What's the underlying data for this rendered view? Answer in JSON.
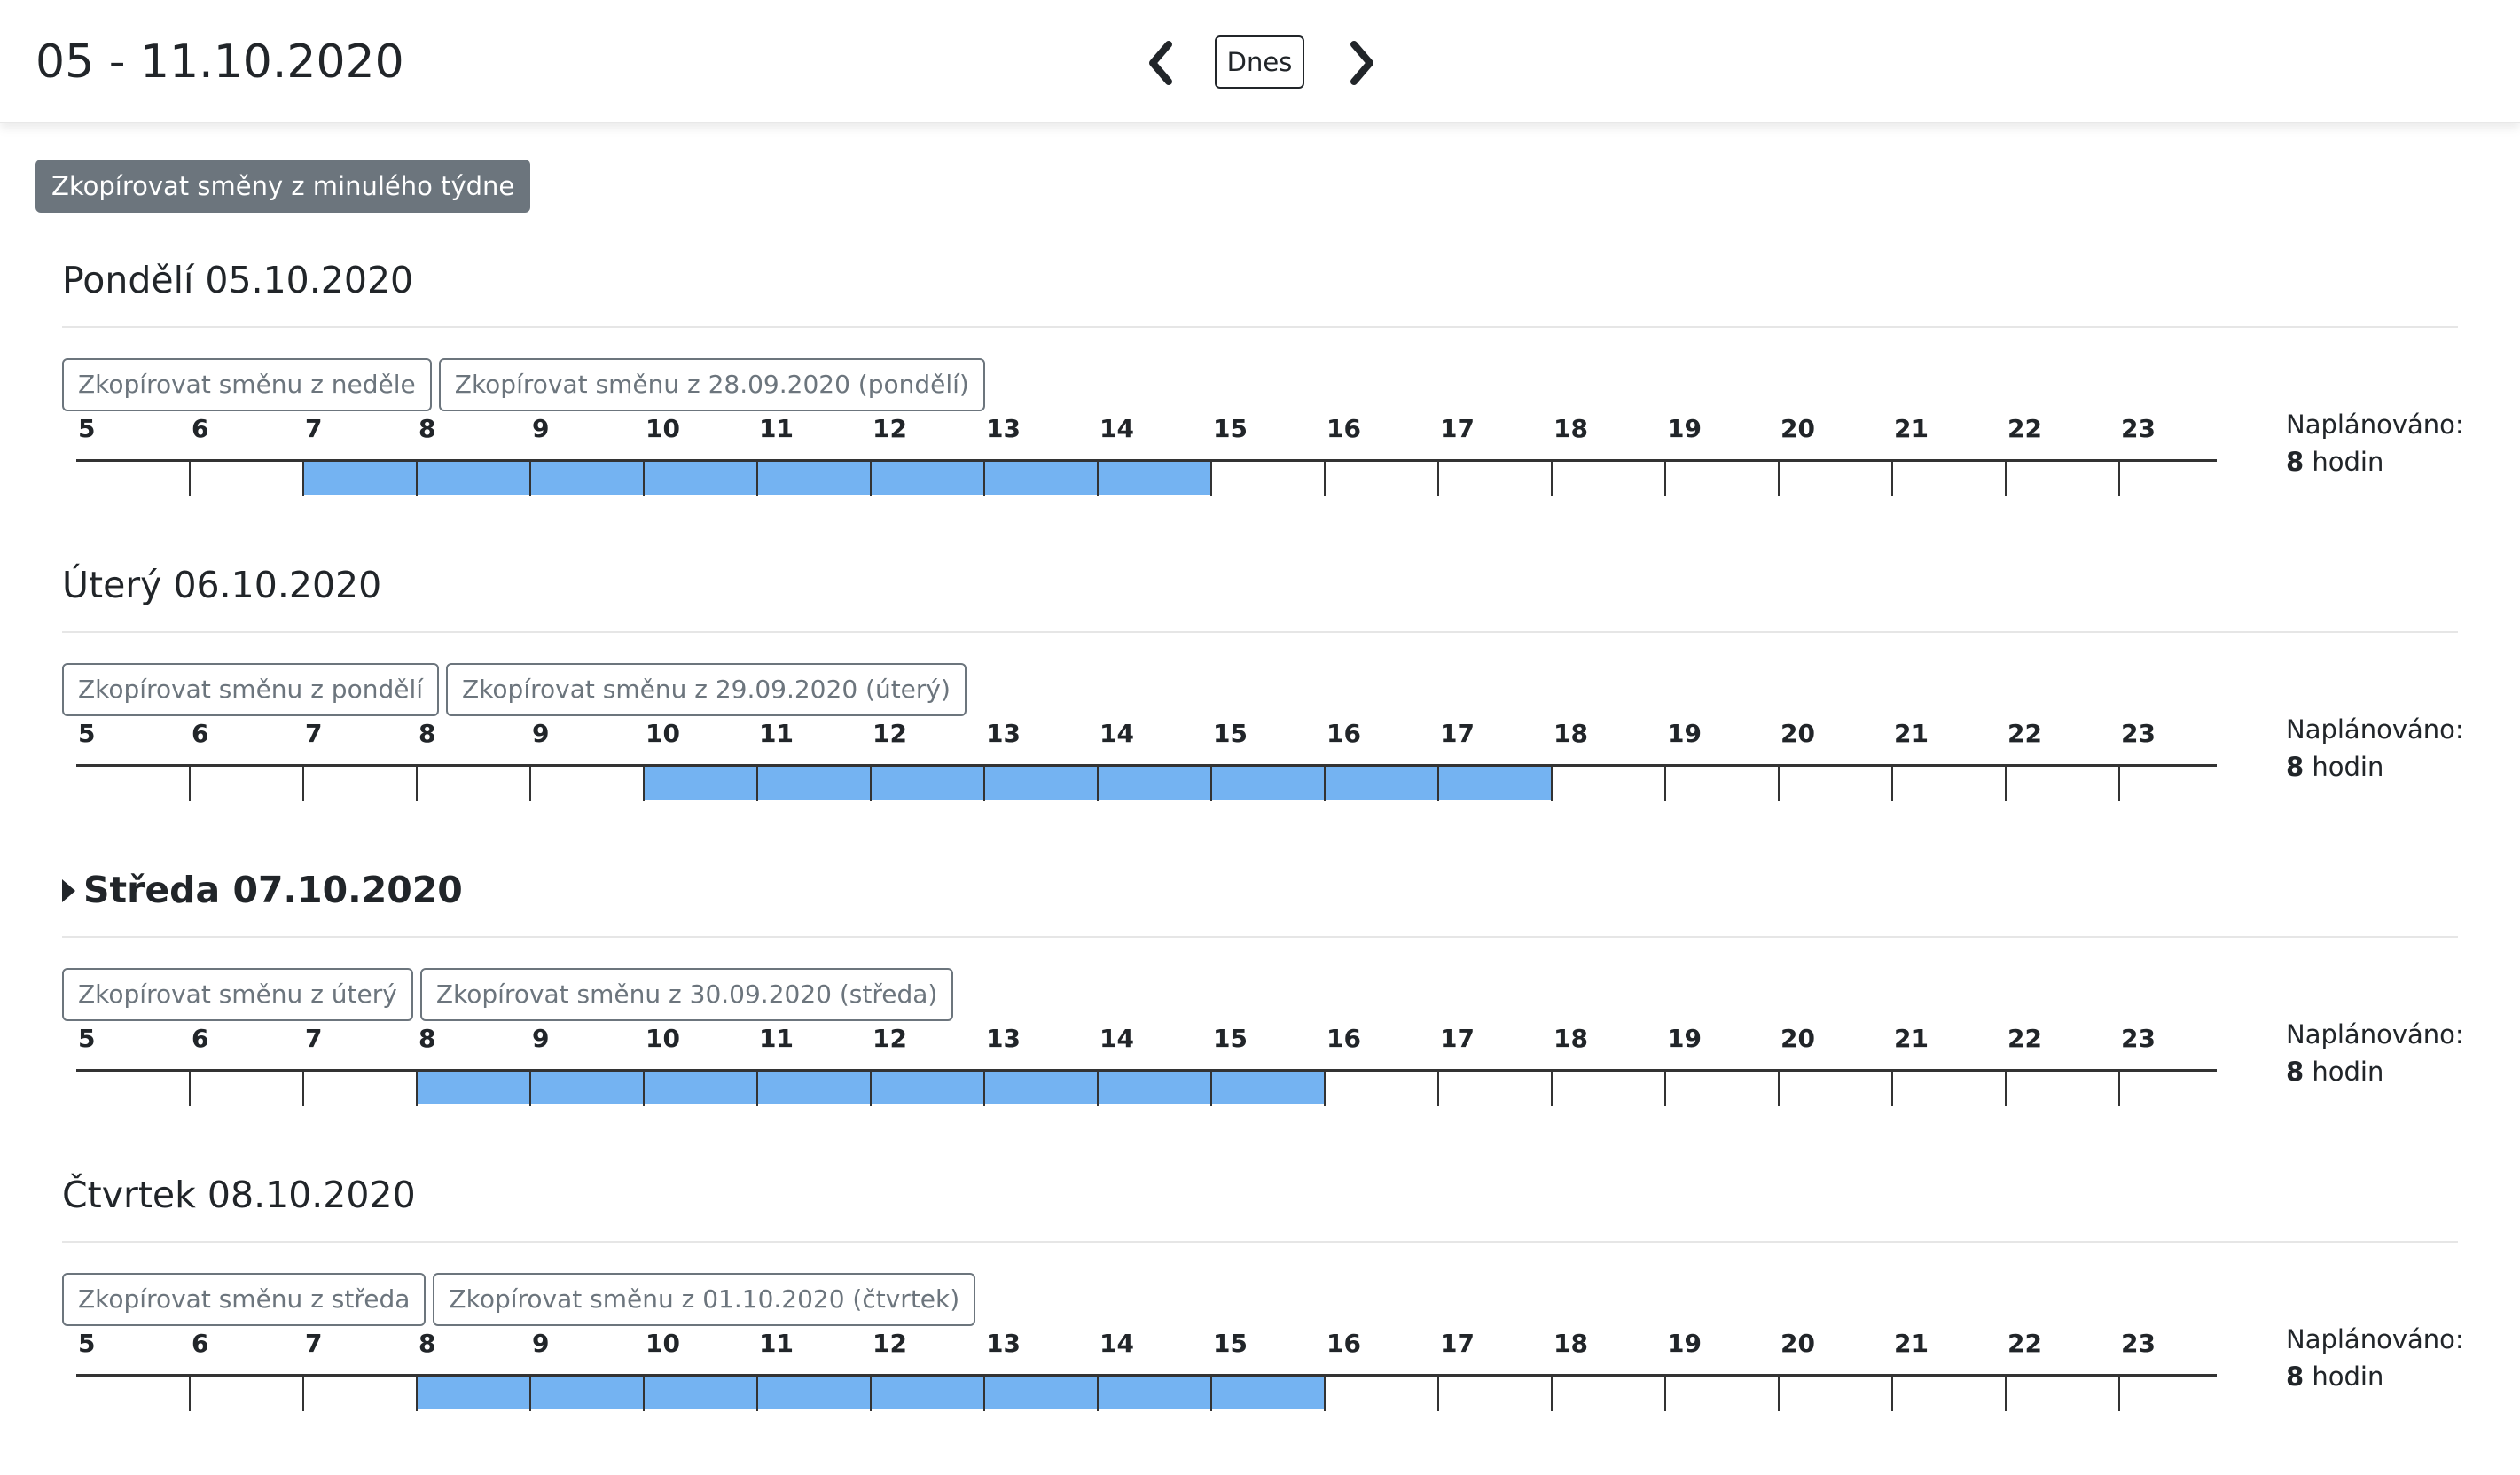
{
  "header": {
    "week_range": "05 - 11.10.2020",
    "prev_icon": "chevron-left-icon",
    "today_label": "Dnes",
    "next_icon": "chevron-right-icon"
  },
  "copy_week_label": "Zkopírovat směny z minulého týdne",
  "hours": [
    "5",
    "6",
    "7",
    "8",
    "9",
    "10",
    "11",
    "12",
    "13",
    "14",
    "15",
    "16",
    "17",
    "18",
    "19",
    "20",
    "21",
    "22",
    "23"
  ],
  "colors": {
    "shift_fill": "#74b3f2",
    "secondary_button": "#6c757d"
  },
  "days": [
    {
      "title": "Pondělí 05.10.2020",
      "active": false,
      "copy_buttons": [
        "Zkopírovat směnu z neděle",
        "Zkopírovat směnu z 28.09.2020 (pondělí)"
      ],
      "shift_start": 7,
      "shift_end": 15,
      "planned_label": "Naplánováno:",
      "planned_hours": "8",
      "planned_unit": "hodin"
    },
    {
      "title": "Úterý 06.10.2020",
      "active": false,
      "copy_buttons": [
        "Zkopírovat směnu z pondělí",
        "Zkopírovat směnu z 29.09.2020 (úterý)"
      ],
      "shift_start": 10,
      "shift_end": 18,
      "planned_label": "Naplánováno:",
      "planned_hours": "8",
      "planned_unit": "hodin"
    },
    {
      "title": "Středa 07.10.2020",
      "active": true,
      "copy_buttons": [
        "Zkopírovat směnu z úterý",
        "Zkopírovat směnu z 30.09.2020 (středa)"
      ],
      "shift_start": 8,
      "shift_end": 16,
      "planned_label": "Naplánováno:",
      "planned_hours": "8",
      "planned_unit": "hodin"
    },
    {
      "title": "Čtvrtek 08.10.2020",
      "active": false,
      "copy_buttons": [
        "Zkopírovat směnu z středa",
        "Zkopírovat směnu z 01.10.2020 (čtvrtek)"
      ],
      "shift_start": 8,
      "shift_end": 16,
      "planned_label": "Naplánováno:",
      "planned_hours": "8",
      "planned_unit": "hodin"
    }
  ]
}
